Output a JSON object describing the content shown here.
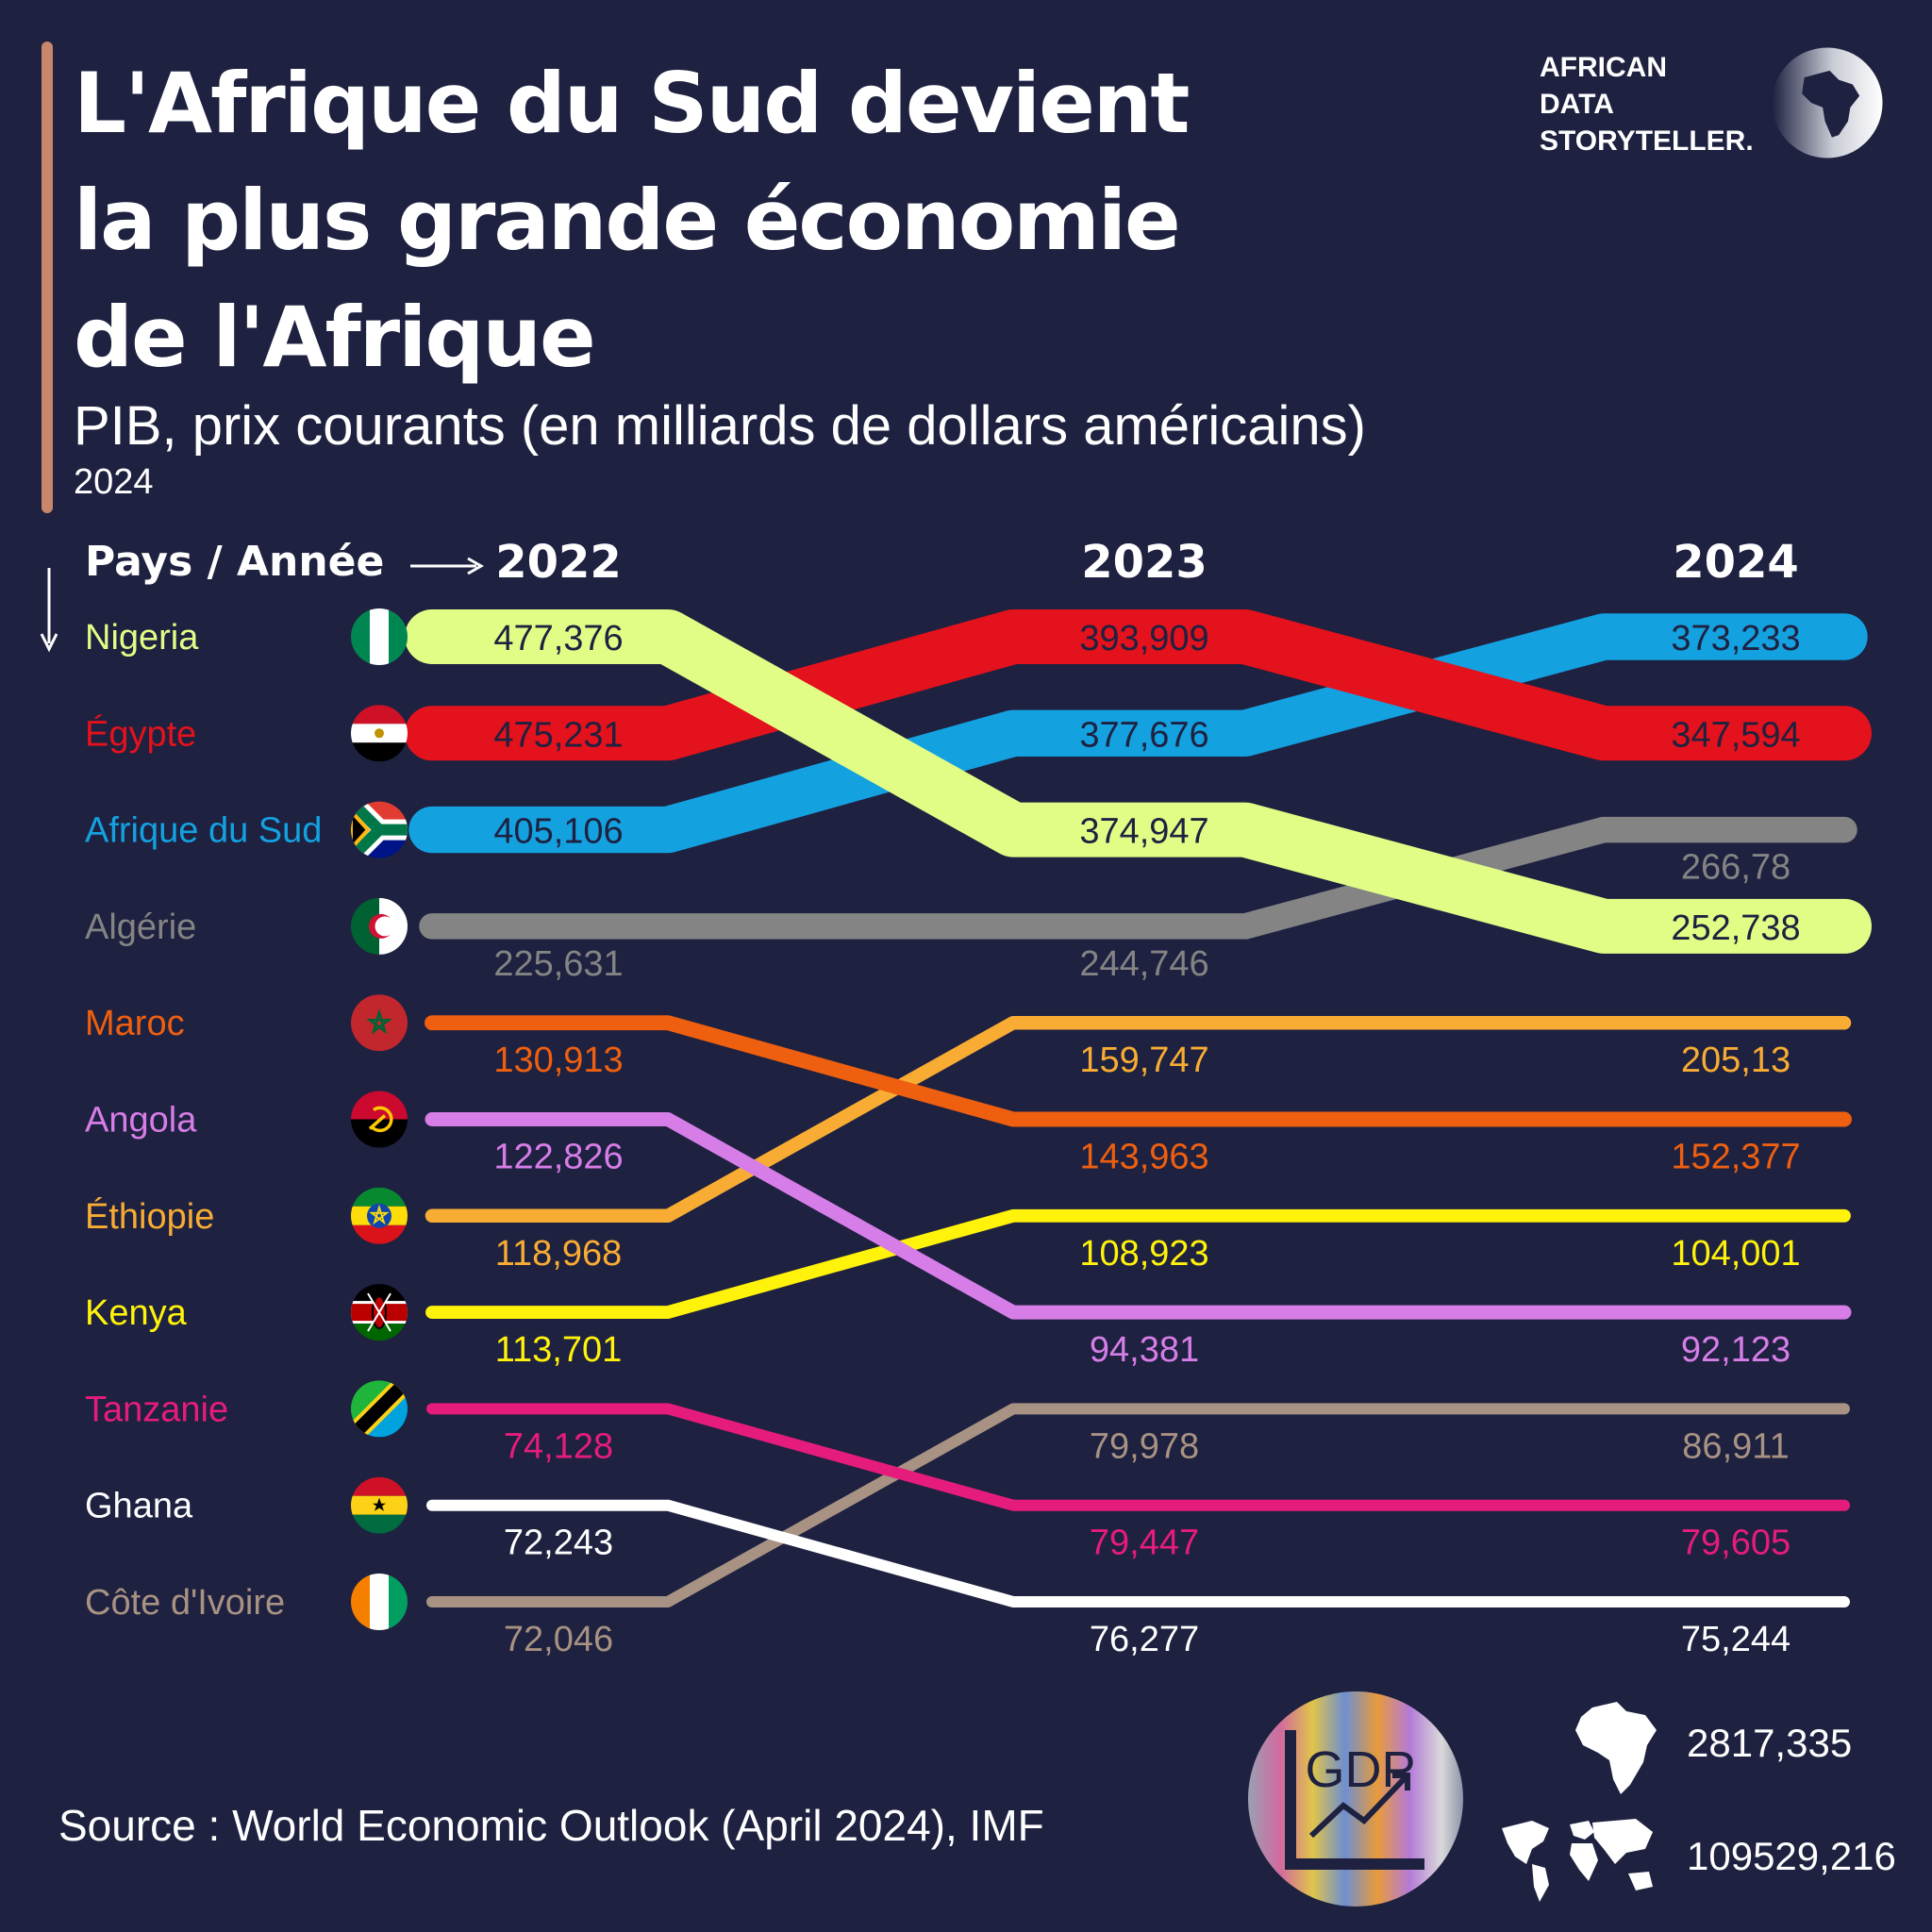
{
  "header": {
    "title_lines": [
      "L'Afrique du Sud devient",
      "la plus grande économie",
      "de l'Afrique"
    ],
    "subtitle": "PIB, prix courants (en milliards de dollars américains)",
    "year_note": "2024"
  },
  "brand": {
    "lines": [
      "AFRICAN",
      "DATA",
      "STORYTELLER."
    ],
    "logo_icon": "africa-map-icon"
  },
  "colors": {
    "background": "#1e2140",
    "accent": "#c8876a",
    "Nigeria": "#e2fd86",
    "Égypte": "#e3121c",
    "Afrique du Sud": "#14a1e0",
    "Algérie": "#848484",
    "Maroc": "#ee5f10",
    "Angola": "#d77de8",
    "Éthiopie": "#f8ac33",
    "Kenya": "#fff20b",
    "Tanzanie": "#e61c7c",
    "Ghana": "#ffffff",
    "Côte d'Ivoire": "#a89283"
  },
  "chart_data": {
    "type": "bump",
    "row_header": "Pays / Année",
    "years": [
      "2022",
      "2023",
      "2024"
    ],
    "series": [
      {
        "name": "Nigeria",
        "values": [
          477.376,
          374.947,
          252.738
        ],
        "labels": [
          "477,376",
          "374,947",
          "252,738"
        ],
        "ranks": [
          1,
          3,
          4
        ],
        "flag": "nigeria-flag-icon"
      },
      {
        "name": "Égypte",
        "values": [
          475.231,
          393.909,
          347.594
        ],
        "labels": [
          "475,231",
          "393,909",
          "347,594"
        ],
        "ranks": [
          2,
          1,
          2
        ],
        "flag": "egypt-flag-icon"
      },
      {
        "name": "Afrique du Sud",
        "values": [
          405.106,
          377.676,
          373.233
        ],
        "labels": [
          "405,106",
          "377,676",
          "373,233"
        ],
        "ranks": [
          3,
          2,
          1
        ],
        "flag": "south-africa-flag-icon"
      },
      {
        "name": "Algérie",
        "values": [
          225.631,
          244.746,
          266.78
        ],
        "labels": [
          "225,631",
          "244,746",
          "266,78"
        ],
        "ranks": [
          4,
          4,
          3
        ],
        "flag": "algeria-flag-icon"
      },
      {
        "name": "Maroc",
        "values": [
          130.913,
          143.963,
          152.377
        ],
        "labels": [
          "130,913",
          "143,963",
          "152,377"
        ],
        "ranks": [
          5,
          6,
          6
        ],
        "flag": "morocco-flag-icon"
      },
      {
        "name": "Angola",
        "values": [
          122.826,
          94.381,
          92.123
        ],
        "labels": [
          "122,826",
          "94,381",
          "92,123"
        ],
        "ranks": [
          6,
          8,
          8
        ],
        "flag": "angola-flag-icon"
      },
      {
        "name": "Éthiopie",
        "values": [
          118.968,
          159.747,
          205.13
        ],
        "labels": [
          "118,968",
          "159,747",
          "205,13"
        ],
        "ranks": [
          7,
          5,
          5
        ],
        "flag": "ethiopia-flag-icon"
      },
      {
        "name": "Kenya",
        "values": [
          113.701,
          108.923,
          104.001
        ],
        "labels": [
          "113,701",
          "108,923",
          "104,001"
        ],
        "ranks": [
          8,
          7,
          7
        ],
        "flag": "kenya-flag-icon"
      },
      {
        "name": "Tanzanie",
        "values": [
          74.128,
          79.447,
          79.605
        ],
        "labels": [
          "74,128",
          "79,447",
          "79,605"
        ],
        "ranks": [
          9,
          10,
          10
        ],
        "flag": "tanzania-flag-icon"
      },
      {
        "name": "Ghana",
        "values": [
          72.243,
          76.277,
          75.244
        ],
        "labels": [
          "72,243",
          "76,277",
          "75,244"
        ],
        "ranks": [
          10,
          11,
          11
        ],
        "flag": "ghana-flag-icon"
      },
      {
        "name": "Côte d'Ivoire",
        "values": [
          72.046,
          79.978,
          86.911
        ],
        "labels": [
          "72,046",
          "79,978",
          "86,911"
        ],
        "ranks": [
          11,
          9,
          9
        ],
        "flag": "cote-divoire-flag-icon"
      }
    ]
  },
  "footer": {
    "source": "Source : World Economic Outlook (April 2024), IMF",
    "badge_text": "GDP",
    "africa_total": "2817,335",
    "world_total": "109529,216",
    "africa_icon": "africa-silhouette-icon",
    "world_icon": "world-map-icon"
  }
}
